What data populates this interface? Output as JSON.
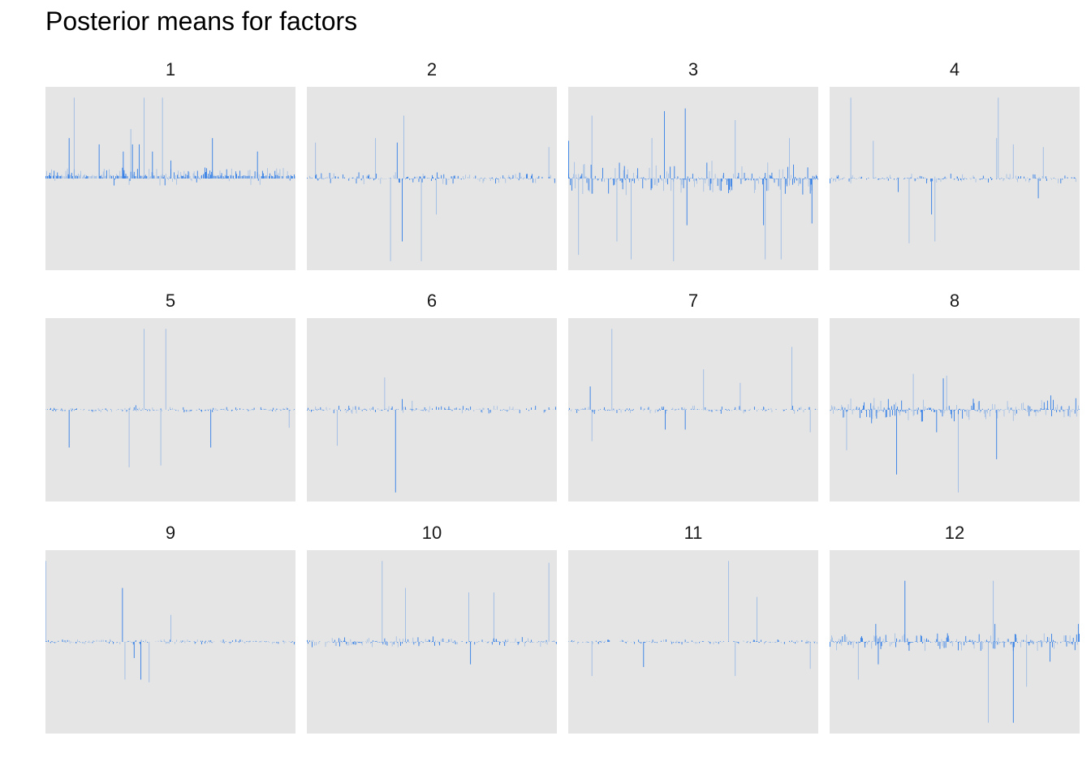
{
  "title": "Posterior means for factors",
  "chart_data": {
    "type": "bar",
    "bar_color": "#1f73e6",
    "panel_background": "#e5e5e5",
    "grid": false,
    "axes_shown": false,
    "xlabel": "",
    "ylabel": "",
    "ylim": [
      -1,
      1
    ],
    "description_of_values": "per-panel signed posterior means, estimated from bar heights relative to panel range",
    "panels": [
      {
        "label": "1",
        "n": 300,
        "seed": 11,
        "baseline": 0.02,
        "spikes": [
          [
            28,
            0.45,
            1
          ],
          [
            34,
            0.9,
            0.4
          ],
          [
            64,
            0.38,
            1
          ],
          [
            93,
            0.3,
            1
          ],
          [
            102,
            0.55,
            0.4
          ],
          [
            104,
            0.38,
            1
          ],
          [
            112,
            0.38,
            1
          ],
          [
            118,
            0.9,
            0.4
          ],
          [
            128,
            0.3,
            1
          ],
          [
            140,
            0.9,
            0.4
          ],
          [
            150,
            0.2,
            1
          ],
          [
            200,
            0.45,
            1
          ],
          [
            254,
            0.3,
            1
          ]
        ],
        "noise": 0.06,
        "pos_bias": 0.85,
        "density": 0.9
      },
      {
        "label": "2",
        "n": 300,
        "seed": 23,
        "baseline": 0.0,
        "spikes": [
          [
            82,
            0.45,
            0.4
          ],
          [
            100,
            -0.92,
            0.4
          ],
          [
            108,
            0.4,
            1
          ],
          [
            114,
            -0.7,
            1
          ],
          [
            116,
            0.7,
            0.4
          ],
          [
            137,
            -0.92,
            0.4
          ],
          [
            155,
            -0.4,
            0.4
          ],
          [
            10,
            0.4,
            0.4
          ],
          [
            290,
            0.35,
            0.4
          ]
        ],
        "noise": 0.04,
        "pos_bias": 0.6,
        "density": 0.6
      },
      {
        "label": "3",
        "n": 300,
        "seed": 37,
        "baseline": 0.0,
        "spikes": [
          [
            0,
            0.42,
            1
          ],
          [
            12,
            -0.85,
            0.4
          ],
          [
            28,
            0.7,
            0.4
          ],
          [
            58,
            -0.7,
            0.4
          ],
          [
            75,
            -0.9,
            0.4
          ],
          [
            115,
            0.75,
            1
          ],
          [
            126,
            -0.92,
            0.4
          ],
          [
            140,
            0.78,
            1
          ],
          [
            142,
            -0.52,
            1
          ],
          [
            200,
            0.65,
            0.4
          ],
          [
            234,
            -0.52,
            1
          ],
          [
            236,
            -0.9,
            0.4
          ],
          [
            265,
            0.45,
            0.4
          ],
          [
            292,
            -0.5,
            1
          ],
          [
            255,
            -0.9,
            0.4
          ],
          [
            100,
            0.45,
            0.4
          ]
        ],
        "noise": 0.12,
        "pos_bias": 0.35,
        "density": 0.85
      },
      {
        "label": "4",
        "n": 300,
        "seed": 41,
        "baseline": 0.0,
        "spikes": [
          [
            25,
            0.9,
            0.4
          ],
          [
            52,
            0.42,
            0.4
          ],
          [
            82,
            -0.15,
            1
          ],
          [
            95,
            -0.72,
            0.4
          ],
          [
            122,
            -0.4,
            1
          ],
          [
            126,
            -0.7,
            0.4
          ],
          [
            200,
            0.45,
            0.4
          ],
          [
            202,
            0.9,
            0.4
          ],
          [
            220,
            0.38,
            0.4
          ],
          [
            250,
            -0.22,
            1
          ],
          [
            256,
            0.35,
            0.4
          ]
        ],
        "noise": 0.03,
        "pos_bias": 0.5,
        "density": 0.5
      },
      {
        "label": "5",
        "n": 300,
        "seed": 53,
        "baseline": 0.0,
        "spikes": [
          [
            28,
            -0.42,
            1
          ],
          [
            100,
            -0.64,
            0.4
          ],
          [
            118,
            0.9,
            0.4
          ],
          [
            138,
            -0.62,
            0.4
          ],
          [
            144,
            0.9,
            0.4
          ],
          [
            198,
            -0.42,
            1
          ],
          [
            292,
            -0.2,
            0.4
          ],
          [
            108,
            0.05,
            1
          ]
        ],
        "noise": 0.015,
        "pos_bias": 0.5,
        "density": 0.5
      },
      {
        "label": "6",
        "n": 300,
        "seed": 67,
        "baseline": 0.0,
        "spikes": [
          [
            36,
            -0.4,
            0.4
          ],
          [
            93,
            0.36,
            0.4
          ],
          [
            106,
            -0.92,
            1
          ],
          [
            114,
            0.12,
            1
          ],
          [
            126,
            0.1,
            0.4
          ]
        ],
        "noise": 0.025,
        "pos_bias": 0.5,
        "density": 0.55
      },
      {
        "label": "7",
        "n": 300,
        "seed": 79,
        "baseline": 0.0,
        "spikes": [
          [
            26,
            0.26,
            1
          ],
          [
            28,
            -0.35,
            0.4
          ],
          [
            52,
            0.9,
            0.4
          ],
          [
            116,
            -0.22,
            1
          ],
          [
            140,
            -0.22,
            1
          ],
          [
            162,
            0.45,
            0.4
          ],
          [
            206,
            0.3,
            0.4
          ],
          [
            268,
            0.7,
            0.4
          ],
          [
            290,
            -0.25,
            0.4
          ]
        ],
        "noise": 0.025,
        "pos_bias": 0.5,
        "density": 0.5
      },
      {
        "label": "8",
        "n": 300,
        "seed": 89,
        "baseline": 0.0,
        "spikes": [
          [
            20,
            -0.45,
            0.4
          ],
          [
            50,
            -0.15,
            1
          ],
          [
            80,
            -0.72,
            1
          ],
          [
            100,
            0.4,
            0.4
          ],
          [
            128,
            -0.25,
            1
          ],
          [
            136,
            0.35,
            1
          ],
          [
            140,
            0.38,
            0.4
          ],
          [
            154,
            -0.92,
            0.4
          ],
          [
            200,
            -0.55,
            1
          ],
          [
            265,
            0.16,
            1
          ]
        ],
        "noise": 0.08,
        "pos_bias": 0.45,
        "density": 0.85
      },
      {
        "label": "9",
        "n": 300,
        "seed": 97,
        "baseline": 0.0,
        "spikes": [
          [
            0,
            0.9,
            0.4
          ],
          [
            92,
            0.6,
            1
          ],
          [
            95,
            -0.42,
            0.4
          ],
          [
            106,
            -0.18,
            1
          ],
          [
            114,
            -0.42,
            1
          ],
          [
            124,
            -0.45,
            0.4
          ],
          [
            150,
            0.3,
            0.4
          ]
        ],
        "noise": 0.015,
        "pos_bias": 0.5,
        "density": 0.5
      },
      {
        "label": "10",
        "n": 300,
        "seed": 103,
        "baseline": 0.0,
        "spikes": [
          [
            90,
            0.9,
            0.4
          ],
          [
            118,
            0.6,
            0.4
          ],
          [
            194,
            0.55,
            0.4
          ],
          [
            196,
            -0.25,
            1
          ],
          [
            224,
            0.55,
            0.4
          ],
          [
            290,
            0.88,
            0.4
          ],
          [
            45,
            0.05,
            1
          ]
        ],
        "noise": 0.035,
        "pos_bias": 0.5,
        "density": 0.7
      },
      {
        "label": "11",
        "n": 300,
        "seed": 113,
        "baseline": 0.0,
        "spikes": [
          [
            28,
            -0.38,
            0.4
          ],
          [
            90,
            -0.28,
            1
          ],
          [
            192,
            0.9,
            0.4
          ],
          [
            200,
            -0.38,
            0.4
          ],
          [
            226,
            0.5,
            0.4
          ],
          [
            290,
            -0.3,
            0.4
          ]
        ],
        "noise": 0.015,
        "pos_bias": 0.5,
        "density": 0.45
      },
      {
        "label": "12",
        "n": 300,
        "seed": 127,
        "baseline": 0.0,
        "spikes": [
          [
            34,
            -0.42,
            0.4
          ],
          [
            55,
            0.2,
            1
          ],
          [
            58,
            -0.25,
            1
          ],
          [
            90,
            0.68,
            1
          ],
          [
            190,
            -0.9,
            0.4
          ],
          [
            196,
            0.68,
            0.4
          ],
          [
            198,
            0.2,
            1
          ],
          [
            220,
            -0.9,
            1
          ],
          [
            236,
            -0.5,
            0.4
          ],
          [
            264,
            -0.22,
            1
          ],
          [
            298,
            0.2,
            1
          ]
        ],
        "noise": 0.06,
        "pos_bias": 0.5,
        "density": 0.85
      }
    ]
  }
}
